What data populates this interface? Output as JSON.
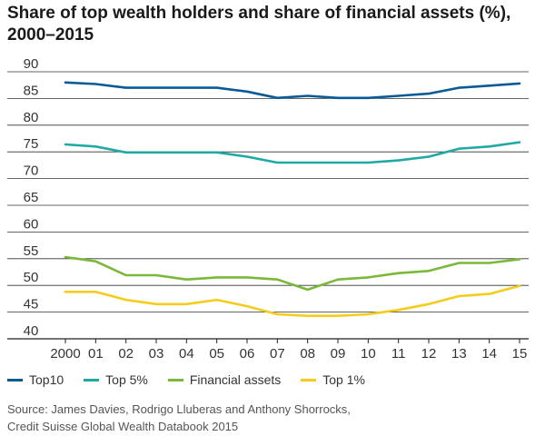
{
  "title_line1": "Share of top wealth holders and share of financial assets (%),",
  "title_line2": "2000–2015",
  "source_line1": "Source: James Davies, Rodrigo Lluberas and Anthony Shorrocks,",
  "source_line2": "Credit Suisse Global Wealth Databook 2015",
  "chart_data": {
    "type": "line",
    "title": "Share of top wealth holders and share of financial assets (%), 2000–2015",
    "x": [
      "2000",
      "01",
      "02",
      "03",
      "04",
      "05",
      "06",
      "07",
      "08",
      "09",
      "10",
      "11",
      "12",
      "13",
      "14",
      "15"
    ],
    "ylim": [
      40,
      90
    ],
    "yticks": [
      40,
      45,
      50,
      55,
      60,
      65,
      70,
      75,
      80,
      85,
      90
    ],
    "grid": "horizontal",
    "legend_position": "bottom",
    "series": [
      {
        "name": "Top10",
        "color": "#0a5a96",
        "values": [
          88,
          87.7,
          87,
          87,
          87,
          87,
          86.3,
          85.1,
          85.5,
          85.1,
          85.1,
          85.5,
          85.9,
          87,
          87.4,
          87.8
        ]
      },
      {
        "name": "Top 5%",
        "color": "#1fa9a2",
        "values": [
          76.4,
          76,
          74.9,
          74.9,
          74.9,
          74.9,
          74.1,
          73,
          73,
          73,
          73,
          73.4,
          74.1,
          75.6,
          76,
          76.8
        ]
      },
      {
        "name": "Financial assets",
        "color": "#7ab83a",
        "values": [
          55.3,
          54.5,
          51.9,
          51.9,
          51.1,
          51.5,
          51.5,
          51.1,
          49.2,
          51.1,
          51.5,
          52.3,
          52.7,
          54.2,
          54.2,
          54.9
        ]
      },
      {
        "name": "Top 1%",
        "color": "#f5cc1b",
        "values": [
          48.8,
          48.8,
          47.3,
          46.5,
          46.5,
          47.3,
          46.1,
          44.6,
          44.3,
          44.3,
          44.6,
          45.4,
          46.5,
          48,
          48.4,
          49.9
        ]
      }
    ]
  }
}
